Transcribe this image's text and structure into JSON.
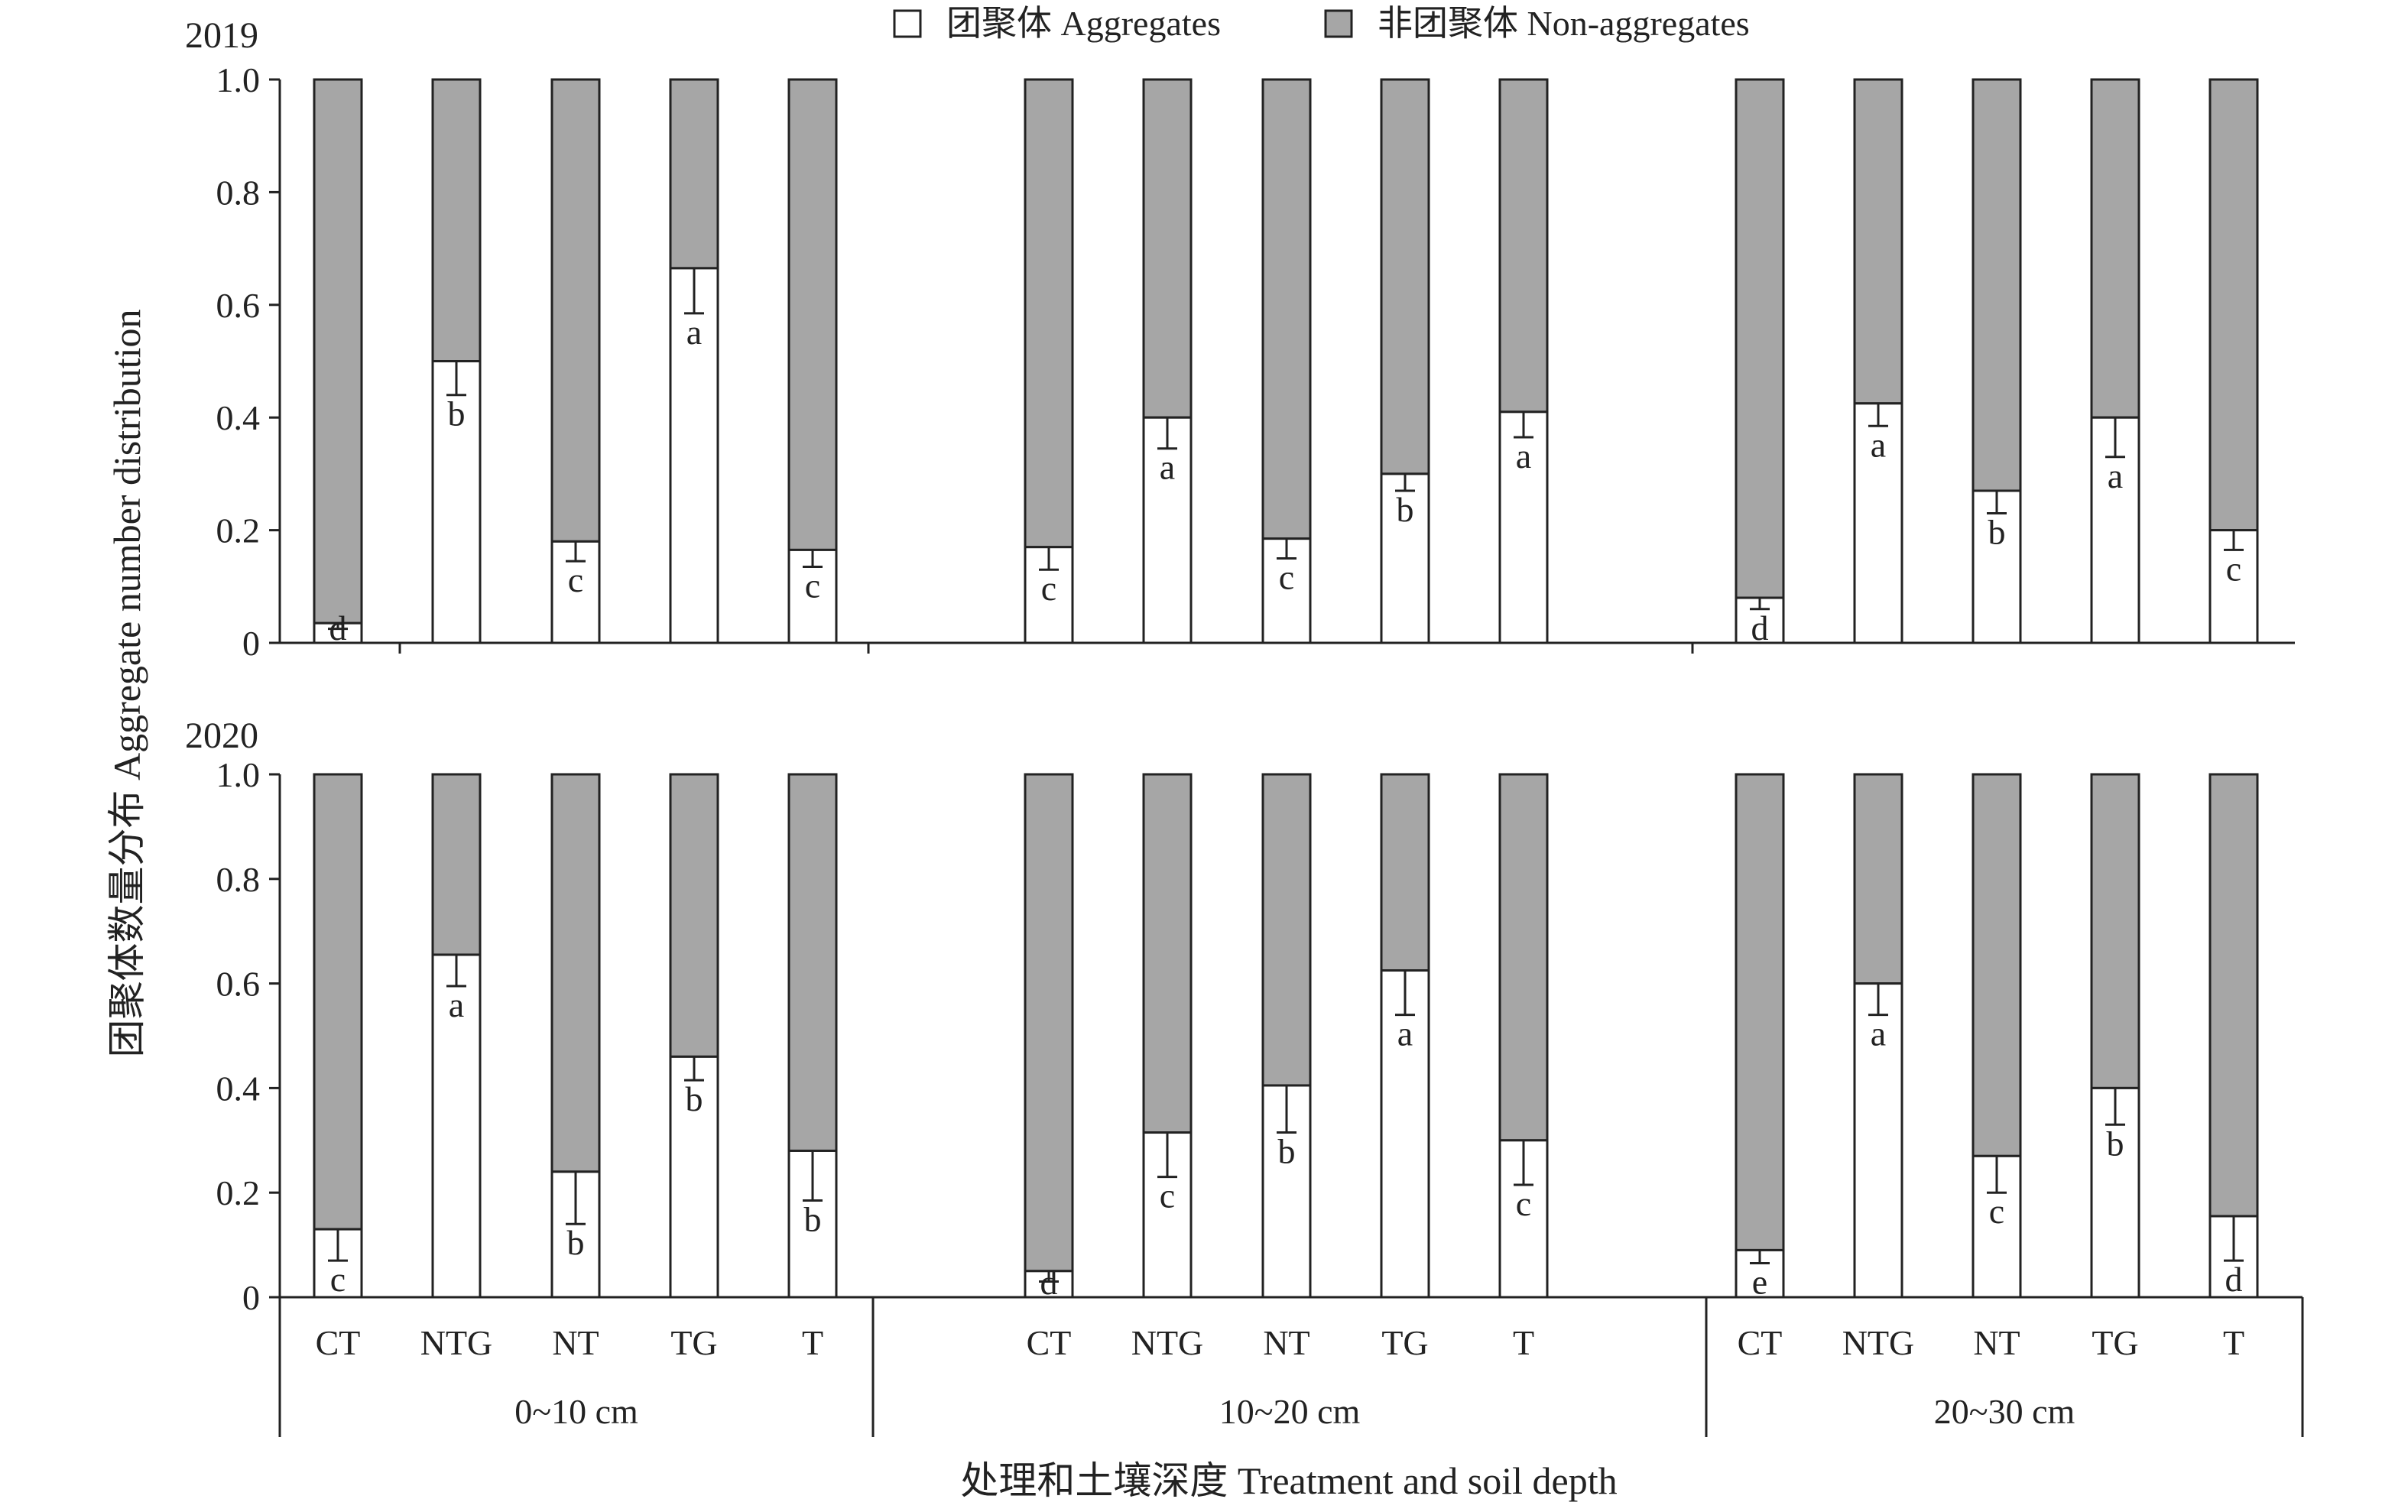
{
  "legend": {
    "items": [
      {
        "label": "团聚体 Aggregates",
        "color": "#ffffff"
      },
      {
        "label": "非团聚体 Non-aggregates",
        "color": "#a6a6a6"
      }
    ]
  },
  "ylabel": "团聚体数量分布 Aggregate number distribution",
  "xlabel": "处理和土壤深度 Treatment and soil depth",
  "colors": {
    "aggregates": "#ffffff",
    "non_aggregates": "#a6a6a6",
    "axis": "#222222"
  },
  "chart_data": [
    {
      "type": "bar",
      "stacked": true,
      "title": "2019",
      "ylim": [
        0,
        1.0
      ],
      "yticks": [
        "0",
        "0.2",
        "0.4",
        "0.6",
        "0.8",
        "1.0"
      ],
      "groups": [
        {
          "label": "0~10 cm",
          "bars": [
            {
              "category": "CT",
              "aggregates": 0.035,
              "error": 0.01,
              "letter": "d"
            },
            {
              "category": "NTG",
              "aggregates": 0.5,
              "error": 0.06,
              "letter": "b"
            },
            {
              "category": "NT",
              "aggregates": 0.18,
              "error": 0.035,
              "letter": "c"
            },
            {
              "category": "TG",
              "aggregates": 0.665,
              "error": 0.08,
              "letter": "a"
            },
            {
              "category": "T",
              "aggregates": 0.165,
              "error": 0.03,
              "letter": "c"
            }
          ]
        },
        {
          "label": "10~20 cm",
          "bars": [
            {
              "category": "CT",
              "aggregates": 0.17,
              "error": 0.04,
              "letter": "c"
            },
            {
              "category": "NTG",
              "aggregates": 0.4,
              "error": 0.055,
              "letter": "a"
            },
            {
              "category": "NT",
              "aggregates": 0.185,
              "error": 0.035,
              "letter": "c"
            },
            {
              "category": "TG",
              "aggregates": 0.3,
              "error": 0.03,
              "letter": "b"
            },
            {
              "category": "T",
              "aggregates": 0.41,
              "error": 0.045,
              "letter": "a"
            }
          ]
        },
        {
          "label": "20~30 cm",
          "bars": [
            {
              "category": "CT",
              "aggregates": 0.08,
              "error": 0.02,
              "letter": "d"
            },
            {
              "category": "NTG",
              "aggregates": 0.425,
              "error": 0.04,
              "letter": "a"
            },
            {
              "category": "NT",
              "aggregates": 0.27,
              "error": 0.04,
              "letter": "b"
            },
            {
              "category": "TG",
              "aggregates": 0.4,
              "error": 0.07,
              "letter": "a"
            },
            {
              "category": "T",
              "aggregates": 0.2,
              "error": 0.035,
              "letter": "c"
            }
          ]
        }
      ]
    },
    {
      "type": "bar",
      "stacked": true,
      "title": "2020",
      "ylim": [
        0,
        1.0
      ],
      "yticks": [
        "0",
        "0.2",
        "0.4",
        "0.6",
        "0.8",
        "1.0"
      ],
      "groups": [
        {
          "label": "0~10 cm",
          "bars": [
            {
              "category": "CT",
              "aggregates": 0.13,
              "error": 0.06,
              "letter": "c"
            },
            {
              "category": "NTG",
              "aggregates": 0.655,
              "error": 0.06,
              "letter": "a"
            },
            {
              "category": "NT",
              "aggregates": 0.24,
              "error": 0.1,
              "letter": "b"
            },
            {
              "category": "TG",
              "aggregates": 0.46,
              "error": 0.045,
              "letter": "b"
            },
            {
              "category": "T",
              "aggregates": 0.28,
              "error": 0.095,
              "letter": "b"
            }
          ]
        },
        {
          "label": "10~20 cm",
          "bars": [
            {
              "category": "CT",
              "aggregates": 0.05,
              "error": 0.02,
              "letter": "d"
            },
            {
              "category": "NTG",
              "aggregates": 0.315,
              "error": 0.085,
              "letter": "c"
            },
            {
              "category": "NT",
              "aggregates": 0.405,
              "error": 0.09,
              "letter": "b"
            },
            {
              "category": "TG",
              "aggregates": 0.625,
              "error": 0.085,
              "letter": "a"
            },
            {
              "category": "T",
              "aggregates": 0.3,
              "error": 0.085,
              "letter": "c"
            }
          ]
        },
        {
          "label": "20~30 cm",
          "bars": [
            {
              "category": "CT",
              "aggregates": 0.09,
              "error": 0.025,
              "letter": "e"
            },
            {
              "category": "NTG",
              "aggregates": 0.6,
              "error": 0.06,
              "letter": "a"
            },
            {
              "category": "NT",
              "aggregates": 0.27,
              "error": 0.07,
              "letter": "c"
            },
            {
              "category": "TG",
              "aggregates": 0.4,
              "error": 0.07,
              "letter": "b"
            },
            {
              "category": "T",
              "aggregates": 0.155,
              "error": 0.085,
              "letter": "d"
            }
          ]
        }
      ]
    }
  ]
}
